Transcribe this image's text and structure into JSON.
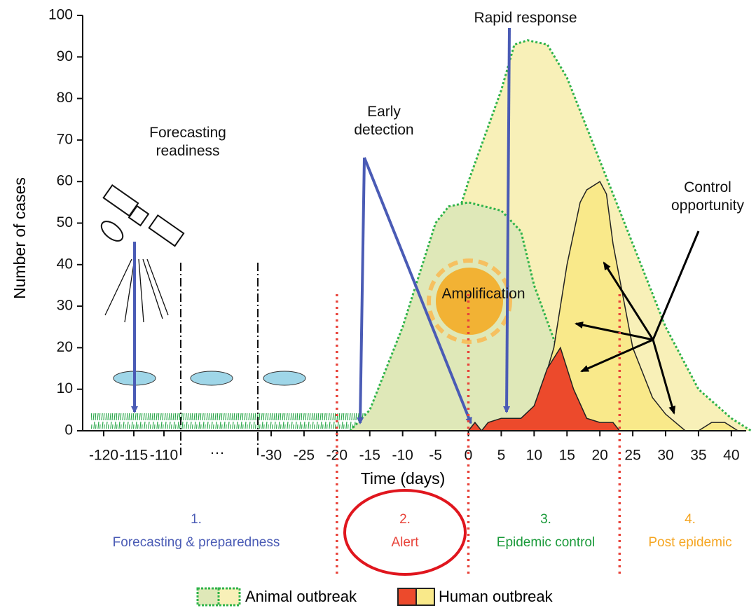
{
  "chart_data": {
    "type": "area",
    "y_label": "Number of cases",
    "x_label": "Time (days)",
    "ylim": [
      0,
      100
    ],
    "yticks": [
      0,
      10,
      20,
      30,
      40,
      50,
      60,
      70,
      80,
      90,
      100
    ],
    "xticks_left": [
      -120,
      -115,
      -110
    ],
    "x_break_label": "···",
    "xticks": [
      -30,
      -25,
      -20,
      -15,
      -10,
      -5,
      0,
      5,
      10,
      15,
      20,
      25,
      30,
      35,
      40
    ],
    "xlim": [
      -30,
      43
    ],
    "series": [
      {
        "name": "Animal outbreak",
        "color": "#f8f0b8",
        "stroke": "#2fb34a",
        "x": [
          -17,
          -15,
          -10,
          -5,
          -2,
          0,
          5,
          7,
          9,
          12,
          15,
          20,
          25,
          30,
          35,
          40,
          43
        ],
        "values": [
          0,
          3,
          20,
          38,
          50,
          60,
          82,
          93,
          94,
          93,
          85,
          65,
          45,
          25,
          10,
          3,
          0
        ]
      },
      {
        "name": "Animal outbreak",
        "color": "#dfe8b8",
        "stroke": "#2fb34a",
        "x": [
          -18,
          -15,
          -10,
          -5,
          -3,
          0,
          5,
          8,
          10,
          13,
          15
        ],
        "values": [
          0,
          5,
          25,
          50,
          54,
          55,
          53,
          48,
          35,
          22,
          15
        ]
      },
      {
        "name": "Human outbreak",
        "color": "#f9e98a",
        "stroke": "#222",
        "x": [
          10,
          13,
          15,
          17,
          18,
          20,
          21,
          22,
          25,
          28,
          30,
          33,
          35,
          37,
          39,
          41
        ],
        "values": [
          4,
          20,
          40,
          55,
          58,
          60,
          57,
          45,
          20,
          8,
          4,
          0,
          0,
          2,
          2,
          0
        ]
      },
      {
        "name": "Human outbreak",
        "color": "#ec4a2c",
        "stroke": "#222",
        "x": [
          0,
          1,
          2,
          3,
          5,
          8,
          10,
          12,
          14,
          16,
          18,
          20,
          22,
          23
        ],
        "values": [
          0,
          2,
          0,
          2,
          3,
          3,
          6,
          15,
          20,
          10,
          3,
          2,
          2,
          0
        ]
      }
    ],
    "phase_lines": [
      -20,
      0,
      23
    ],
    "annotations": [
      "Forecasting\nreadiness",
      "Early\ndetection",
      "Rapid response",
      "Amplification",
      "Control\nopportunity"
    ],
    "phases": [
      {
        "number": "1.",
        "label": "Forecasting & preparedness",
        "color": "#4a5bb5"
      },
      {
        "number": "2.",
        "label": "Alert",
        "color": "#e8433a"
      },
      {
        "number": "3.",
        "label": "Epidemic control",
        "color": "#1a9a3a"
      },
      {
        "number": "4.",
        "label": "Post epidemic",
        "color": "#f5a623"
      }
    ],
    "legend": [
      "Animal outbreak",
      "Human outbreak"
    ]
  }
}
